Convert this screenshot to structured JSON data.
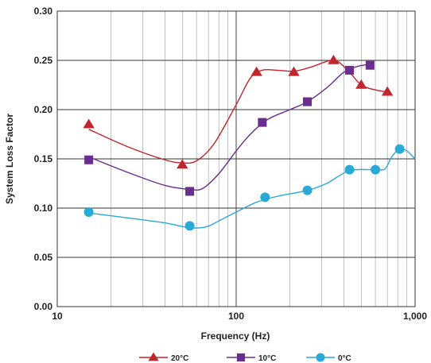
{
  "chart_data": {
    "type": "line",
    "title": "",
    "xlabel": "Frequency (Hz)",
    "ylabel": "System Loss Factor",
    "xscale": "log",
    "xlim": [
      10,
      1000
    ],
    "ylim": [
      0,
      0.3
    ],
    "grid": true,
    "legend_position": "bottom-center",
    "x_ticks": [
      10,
      100,
      1000
    ],
    "x_tick_labels": [
      "10",
      "100",
      "1,000"
    ],
    "y_ticks": [
      0.0,
      0.05,
      0.1,
      0.15,
      0.2,
      0.25,
      0.3
    ],
    "y_tick_labels": [
      "0.00",
      "0.05",
      "0.10",
      "0.15",
      "0.20",
      "0.25",
      "0.30"
    ],
    "series": [
      {
        "name": "20°C",
        "color": "#c0262d",
        "marker": "triangle",
        "x": [
          15,
          50,
          130,
          210,
          350,
          500,
          700
        ],
        "y": [
          0.185,
          0.144,
          0.238,
          0.238,
          0.25,
          0.225,
          0.218
        ]
      },
      {
        "name": "10°C",
        "color": "#6a2e8f",
        "marker": "square",
        "x": [
          15,
          55,
          140,
          250,
          430,
          560
        ],
        "y": [
          0.149,
          0.117,
          0.187,
          0.208,
          0.24,
          0.245
        ]
      },
      {
        "name": "0°C",
        "color": "#29a9d6",
        "marker": "circle",
        "x": [
          15,
          55,
          145,
          250,
          430,
          600,
          820
        ],
        "y": [
          0.096,
          0.082,
          0.111,
          0.118,
          0.139,
          0.139,
          0.16
        ]
      }
    ],
    "curves": [
      {
        "series": "20°C",
        "x": [
          15,
          25,
          40,
          50,
          60,
          75,
          100,
          120,
          140,
          170,
          210,
          260,
          350,
          420,
          500,
          600,
          700
        ],
        "y": [
          0.18,
          0.162,
          0.149,
          0.146,
          0.148,
          0.165,
          0.205,
          0.232,
          0.24,
          0.24,
          0.239,
          0.243,
          0.25,
          0.24,
          0.225,
          0.22,
          0.218
        ]
      },
      {
        "series": "10°C",
        "x": [
          15,
          25,
          40,
          55,
          65,
          80,
          100,
          120,
          150,
          200,
          250,
          320,
          400,
          480,
          560
        ],
        "y": [
          0.152,
          0.136,
          0.123,
          0.119,
          0.12,
          0.135,
          0.158,
          0.175,
          0.19,
          0.2,
          0.208,
          0.222,
          0.238,
          0.244,
          0.246
        ]
      },
      {
        "series": "0°C",
        "x": [
          15,
          25,
          40,
          55,
          68,
          80,
          100,
          130,
          170,
          250,
          320,
          430,
          600,
          680,
          740,
          820,
          900,
          1000
        ],
        "y": [
          0.095,
          0.09,
          0.085,
          0.08,
          0.081,
          0.087,
          0.096,
          0.106,
          0.112,
          0.118,
          0.125,
          0.138,
          0.139,
          0.14,
          0.152,
          0.16,
          0.158,
          0.15
        ]
      }
    ]
  }
}
